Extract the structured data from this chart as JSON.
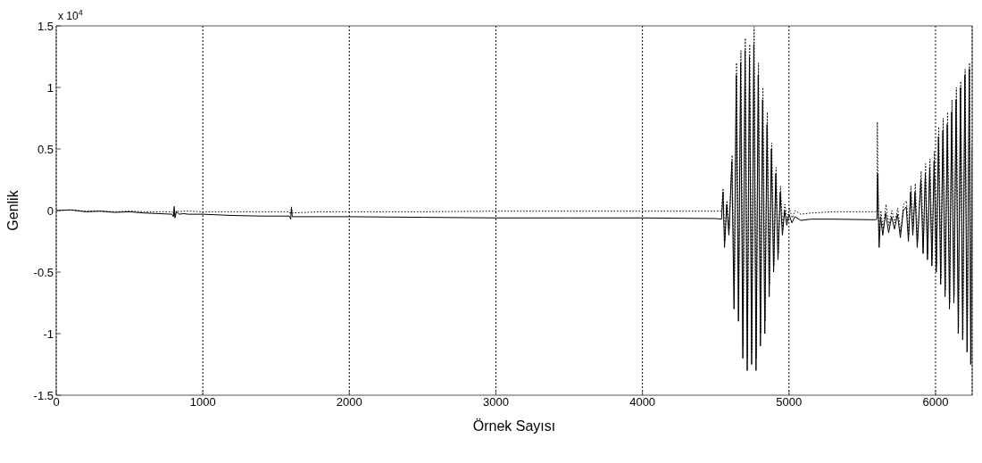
{
  "chart_data": {
    "type": "line",
    "xlabel": "Örnek Sayısı",
    "ylabel": "Genlik",
    "annotations": [
      "x 10$^{4}$"
    ],
    "xlim": [
      0,
      6250
    ],
    "xticks": [
      0,
      1000,
      2000,
      3000,
      4000,
      5000,
      6000
    ],
    "ylim": [
      -1.5,
      1.5
    ],
    "yticks": [
      -1.5,
      -1,
      -0.5,
      0,
      0.5,
      1,
      1.5
    ],
    "grid": "x",
    "series": [
      {
        "color": "#000000",
        "line_style": "solid",
        "x": [
          0,
          100,
          200,
          300,
          400,
          500,
          600,
          700,
          790,
          800,
          805,
          810,
          820,
          840,
          870,
          900,
          1000,
          1200,
          1400,
          1590,
          1600,
          1605,
          1610,
          1800,
          2000,
          2500,
          3000,
          3500,
          4000,
          4500,
          4540,
          4550,
          4560,
          4575,
          4590,
          4610,
          4625,
          4640,
          4655,
          4670,
          4685,
          4700,
          4715,
          4730,
          4745,
          4760,
          4775,
          4790,
          4805,
          4820,
          4835,
          4850,
          4865,
          4880,
          4895,
          4910,
          4925,
          4940,
          4955,
          4970,
          4985,
          5000,
          5020,
          5040,
          5080,
          5150,
          5300,
          5590,
          5600,
          5605,
          5615,
          5625,
          5640,
          5660,
          5680,
          5700,
          5720,
          5740,
          5760,
          5780,
          5800,
          5815,
          5830,
          5845,
          5860,
          5875,
          5900,
          5915,
          5930,
          5945,
          5960,
          5975,
          5990,
          6005,
          6020,
          6035,
          6050,
          6065,
          6080,
          6095,
          6110,
          6125,
          6140,
          6155,
          6170,
          6185,
          6200,
          6215,
          6230,
          6240,
          6250
        ],
        "values": [
          0,
          0.005,
          -0.01,
          -0.005,
          -0.015,
          -0.01,
          -0.02,
          -0.025,
          -0.03,
          -0.05,
          0.02,
          -0.06,
          -0.01,
          -0.03,
          -0.025,
          -0.03,
          -0.03,
          -0.04,
          -0.045,
          -0.045,
          -0.07,
          0.02,
          -0.05,
          -0.05,
          -0.05,
          -0.055,
          -0.06,
          -0.06,
          -0.06,
          -0.065,
          -0.07,
          0.15,
          -0.3,
          0.05,
          -0.2,
          0.4,
          -0.8,
          1.1,
          -0.9,
          1.2,
          -1.2,
          1.3,
          -1.3,
          1.25,
          -1.25,
          1.35,
          -1.3,
          1.1,
          -1.1,
          0.9,
          -1,
          0.7,
          -0.7,
          0.5,
          -0.5,
          0.3,
          -0.4,
          0.15,
          -0.2,
          0,
          -0.12,
          -0.03,
          -0.1,
          -0.05,
          -0.08,
          -0.07,
          -0.07,
          -0.075,
          -0.07,
          0.3,
          -0.3,
          -0.05,
          -0.2,
          -0.02,
          -0.18,
          -0.05,
          -0.15,
          -0.03,
          -0.22,
          0,
          0.03,
          -0.25,
          0.15,
          -0.2,
          0.15,
          -0.3,
          0.25,
          -0.35,
          0.3,
          -0.4,
          0.35,
          -0.45,
          0.4,
          -0.5,
          0.6,
          -0.6,
          0.65,
          -0.7,
          0.7,
          -0.8,
          0.8,
          -0.75,
          0.9,
          -1,
          1,
          -1.05,
          1.1,
          -1.15,
          1.15,
          -1.25,
          0.5
        ]
      },
      {
        "color": "#000000",
        "line_style": "dotted",
        "x": [
          0,
          100,
          200,
          300,
          400,
          500,
          600,
          700,
          790,
          800,
          805,
          810,
          820,
          840,
          870,
          900,
          1000,
          1200,
          1400,
          1590,
          1600,
          1605,
          1610,
          1800,
          2000,
          2500,
          3000,
          3500,
          4000,
          4500,
          4540,
          4550,
          4562,
          4577,
          4592,
          4612,
          4627,
          4642,
          4657,
          4672,
          4687,
          4702,
          4717,
          4732,
          4747,
          4762,
          4777,
          4792,
          4807,
          4822,
          4837,
          4852,
          4867,
          4882,
          4897,
          4912,
          4927,
          4942,
          4957,
          4972,
          4987,
          5002,
          5022,
          5042,
          5080,
          5150,
          5300,
          5590,
          5600,
          5603,
          5613,
          5627,
          5642,
          5662,
          5682,
          5702,
          5722,
          5742,
          5762,
          5782,
          5802,
          5817,
          5832,
          5847,
          5862,
          5877,
          5902,
          5917,
          5932,
          5947,
          5962,
          5977,
          5992,
          6007,
          6022,
          6037,
          6052,
          6067,
          6082,
          6097,
          6112,
          6127,
          6142,
          6157,
          6172,
          6187,
          6202,
          6217,
          6232,
          6242,
          6250
        ],
        "values": [
          0,
          0.005,
          -0.005,
          -0.005,
          -0.01,
          -0.005,
          -0.01,
          -0.01,
          -0.01,
          -0.03,
          0.04,
          -0.04,
          0,
          -0.01,
          -0.005,
          -0.005,
          -0.01,
          -0.01,
          -0.01,
          -0.01,
          -0.03,
          0.03,
          -0.02,
          -0.01,
          -0.01,
          -0.01,
          -0.005,
          -0.005,
          -0.005,
          -0.005,
          -0.005,
          0.18,
          -0.25,
          0.08,
          -0.15,
          0.45,
          -0.75,
          1.2,
          -0.85,
          1.3,
          -1.1,
          1.4,
          -1.2,
          1.35,
          -1.15,
          1.49,
          -1.2,
          1.2,
          -1,
          1,
          -0.9,
          0.8,
          -0.6,
          0.55,
          -0.45,
          0.35,
          -0.35,
          0.2,
          -0.15,
          0.05,
          -0.08,
          0.02,
          -0.06,
          0,
          -0.03,
          -0.02,
          -0.01,
          -0.01,
          -0.01,
          0.72,
          -0.25,
          0,
          -0.15,
          0.05,
          -0.12,
          0,
          -0.1,
          0.02,
          -0.18,
          0.05,
          0.08,
          -0.2,
          0.2,
          -0.15,
          0.22,
          -0.25,
          0.32,
          -0.3,
          0.38,
          -0.35,
          0.42,
          -0.4,
          0.48,
          -0.45,
          0.68,
          -0.55,
          0.75,
          -0.65,
          0.8,
          -0.75,
          0.9,
          -0.7,
          1,
          -0.95,
          1.05,
          -1,
          1.15,
          -1.1,
          1.2,
          -1.2,
          0.6
        ]
      }
    ]
  }
}
